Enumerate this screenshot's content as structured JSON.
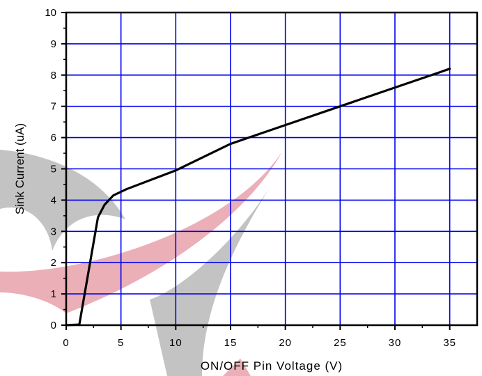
{
  "chart_data": {
    "type": "line",
    "xlabel": "ON/OFF Pin Voltage (V)",
    "ylabel": "Sink Current (uA)",
    "xlim": [
      0,
      37.5
    ],
    "ylim": [
      0,
      10
    ],
    "xticks": [
      0,
      5,
      10,
      15,
      20,
      25,
      30,
      35
    ],
    "yticks": [
      0,
      1,
      2,
      3,
      4,
      5,
      6,
      7,
      8,
      9,
      10
    ],
    "grid": true,
    "series": [
      {
        "x": [
          0,
          1.2,
          2.9,
          3.5,
          4.3,
          5.5,
          10,
          15,
          20,
          25,
          30,
          35
        ],
        "y": [
          0,
          0.02,
          3.45,
          3.85,
          4.15,
          4.35,
          4.95,
          5.8,
          6.4,
          7.0,
          7.6,
          8.2
        ]
      }
    ]
  },
  "colors": {
    "grid": "#0000ee",
    "line": "#000000",
    "watermark_red": "#e7a1ac",
    "watermark_gray": "#b8b8b8"
  }
}
